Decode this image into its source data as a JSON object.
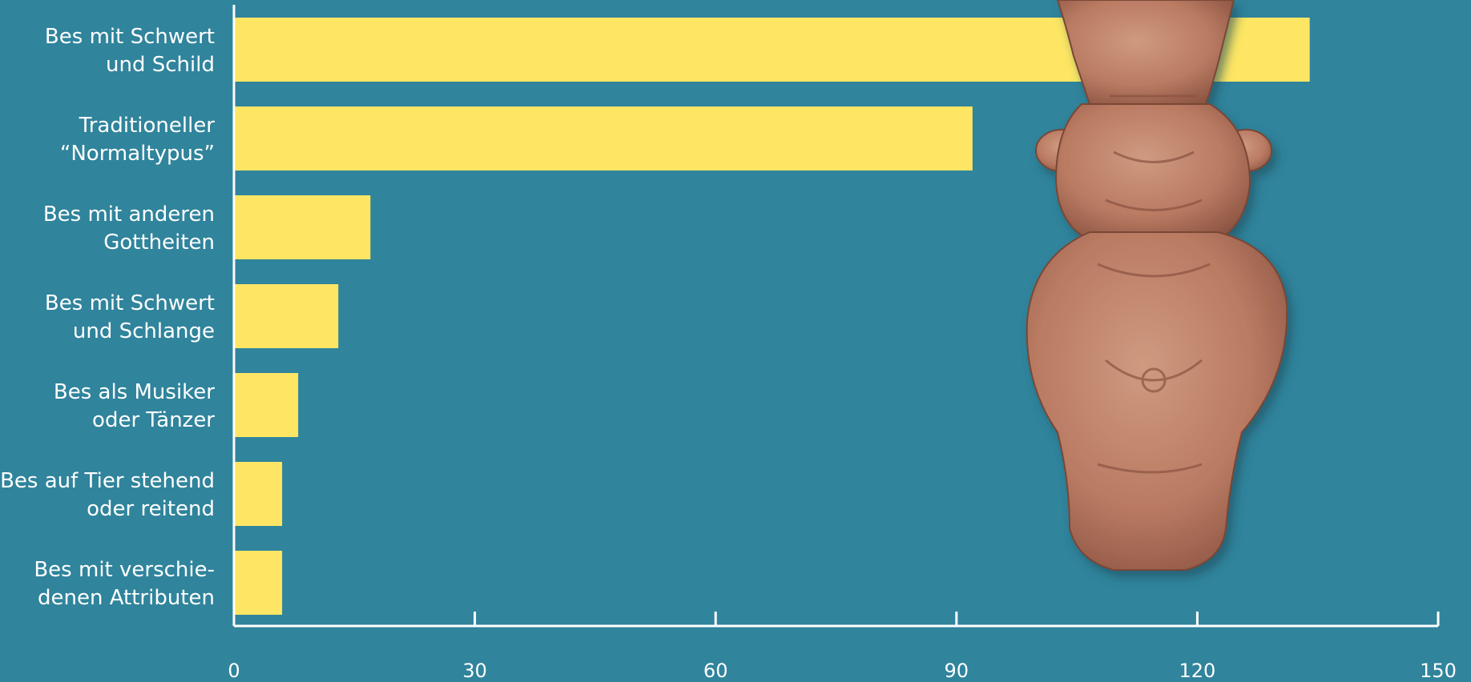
{
  "chart_data": {
    "type": "bar",
    "orientation": "horizontal",
    "categories": [
      [
        "Bes mit Schwert",
        "und Schild"
      ],
      [
        "Traditioneller",
        "“Normaltypus”"
      ],
      [
        "Bes mit anderen",
        "Gottheiten"
      ],
      [
        "Bes mit Schwert",
        "und Schlange"
      ],
      [
        "Bes als Musiker",
        "oder Tänzer"
      ],
      [
        "Bes auf Tier stehend",
        "oder reitend"
      ],
      [
        "Bes mit verschie-",
        "denen Attributen"
      ]
    ],
    "values": [
      134,
      92,
      17,
      13,
      8,
      6,
      6
    ],
    "xlim": [
      0,
      150
    ],
    "xticks": [
      "0",
      "30",
      "60",
      "90",
      "120",
      "150"
    ],
    "xtick_values": [
      0,
      30,
      60,
      90,
      120,
      150
    ],
    "title": "",
    "xlabel": "",
    "ylabel": "",
    "grid": false,
    "colors": {
      "background": "#30849c",
      "bar": "#fee664",
      "axis": "#ffffff",
      "text": "#ffffff"
    },
    "image": {
      "subject": "terracotta Bes figurine",
      "colors": {
        "clay": "#b97a62",
        "clay_dark": "#8a5341",
        "clay_light": "#cf9a80"
      }
    }
  }
}
